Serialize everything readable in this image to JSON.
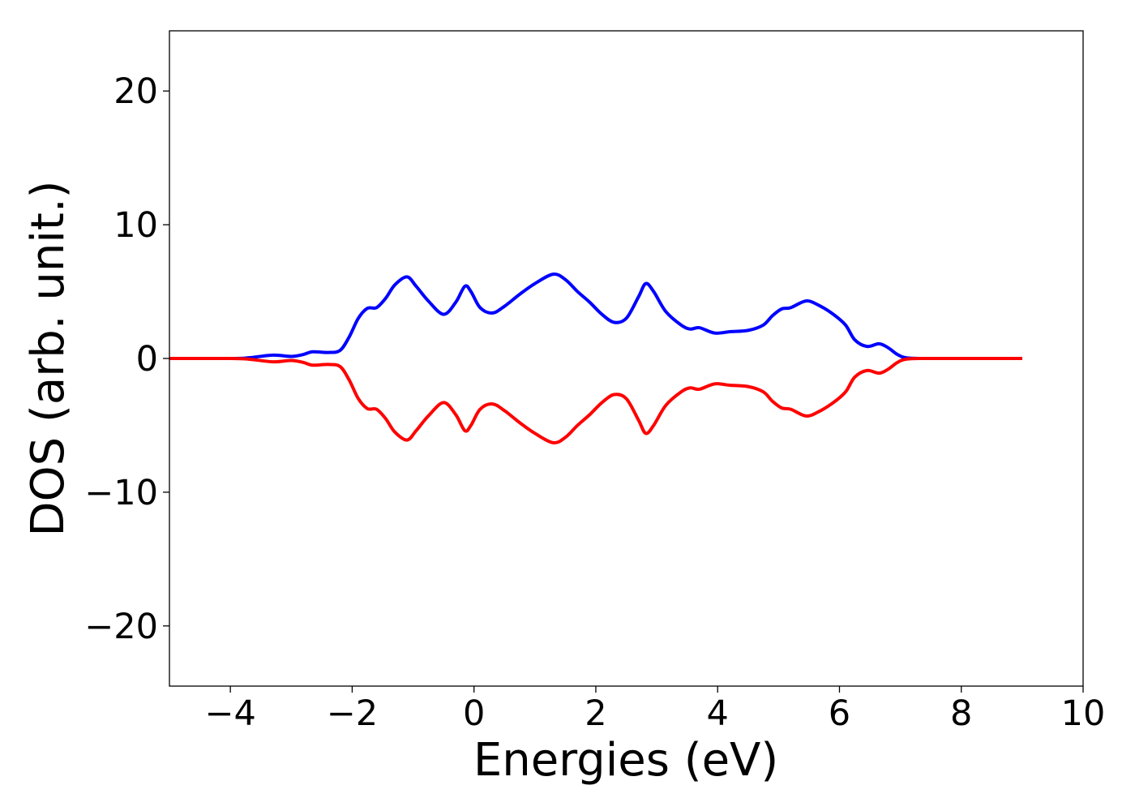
{
  "chart_data": {
    "type": "line",
    "title": "",
    "xlabel": "Energies (eV)",
    "ylabel": "DOS (arb. unit.)",
    "xlim": [
      -5,
      10
    ],
    "ylim": [
      -24.5,
      24.5
    ],
    "xticks": [
      -4,
      -2,
      0,
      2,
      4,
      6,
      8,
      10
    ],
    "xtick_labels": [
      "−4",
      "−2",
      "0",
      "2",
      "4",
      "6",
      "8",
      "10"
    ],
    "yticks": [
      20,
      10,
      0,
      -10,
      -20
    ],
    "ytick_labels": [
      "20",
      "10",
      "0",
      "−10",
      "−20"
    ],
    "grid": false,
    "legend": "none",
    "x": [
      -5.0,
      -4.0,
      -3.7,
      -3.3,
      -3.0,
      -2.8,
      -2.65,
      -2.4,
      -2.2,
      -2.05,
      -1.9,
      -1.75,
      -1.6,
      -1.45,
      -1.3,
      -1.1,
      -0.95,
      -0.75,
      -0.5,
      -0.3,
      -0.15,
      -0.05,
      0.1,
      0.3,
      0.5,
      0.75,
      1.0,
      1.3,
      1.5,
      1.7,
      1.9,
      2.1,
      2.3,
      2.5,
      2.7,
      2.82,
      2.95,
      3.15,
      3.4,
      3.55,
      3.7,
      3.95,
      4.2,
      4.5,
      4.75,
      4.9,
      5.05,
      5.2,
      5.45,
      5.65,
      5.9,
      6.1,
      6.25,
      6.45,
      6.65,
      6.8,
      6.95,
      7.1,
      7.4,
      8.0,
      9.0
    ],
    "series": [
      {
        "color": "#0000ff",
        "values": [
          0.0,
          0.0,
          0.05,
          0.25,
          0.15,
          0.3,
          0.5,
          0.45,
          0.6,
          1.6,
          3.0,
          3.75,
          3.8,
          4.5,
          5.5,
          6.1,
          5.4,
          4.3,
          3.3,
          4.2,
          5.4,
          5.0,
          3.8,
          3.4,
          3.9,
          4.8,
          5.6,
          6.3,
          5.9,
          5.0,
          4.2,
          3.3,
          2.7,
          3.0,
          4.6,
          5.6,
          5.0,
          3.5,
          2.5,
          2.2,
          2.3,
          1.9,
          2.0,
          2.1,
          2.5,
          3.2,
          3.7,
          3.8,
          4.3,
          4.0,
          3.3,
          2.5,
          1.4,
          0.9,
          1.1,
          0.8,
          0.3,
          0.05,
          0.0,
          0.0,
          0.0
        ]
      },
      {
        "color": "#ff0000",
        "values": [
          0.0,
          0.0,
          -0.05,
          -0.25,
          -0.15,
          -0.3,
          -0.5,
          -0.45,
          -0.6,
          -1.6,
          -3.0,
          -3.75,
          -3.8,
          -4.5,
          -5.5,
          -6.1,
          -5.4,
          -4.3,
          -3.3,
          -4.2,
          -5.4,
          -5.0,
          -3.8,
          -3.4,
          -3.9,
          -4.8,
          -5.6,
          -6.3,
          -5.9,
          -5.0,
          -4.2,
          -3.3,
          -2.7,
          -3.0,
          -4.6,
          -5.6,
          -5.0,
          -3.5,
          -2.5,
          -2.2,
          -2.3,
          -1.9,
          -2.0,
          -2.1,
          -2.5,
          -3.2,
          -3.7,
          -3.8,
          -4.3,
          -4.0,
          -3.3,
          -2.5,
          -1.4,
          -0.9,
          -1.1,
          -0.8,
          -0.3,
          -0.05,
          0.0,
          0.0,
          0.0
        ]
      }
    ]
  }
}
